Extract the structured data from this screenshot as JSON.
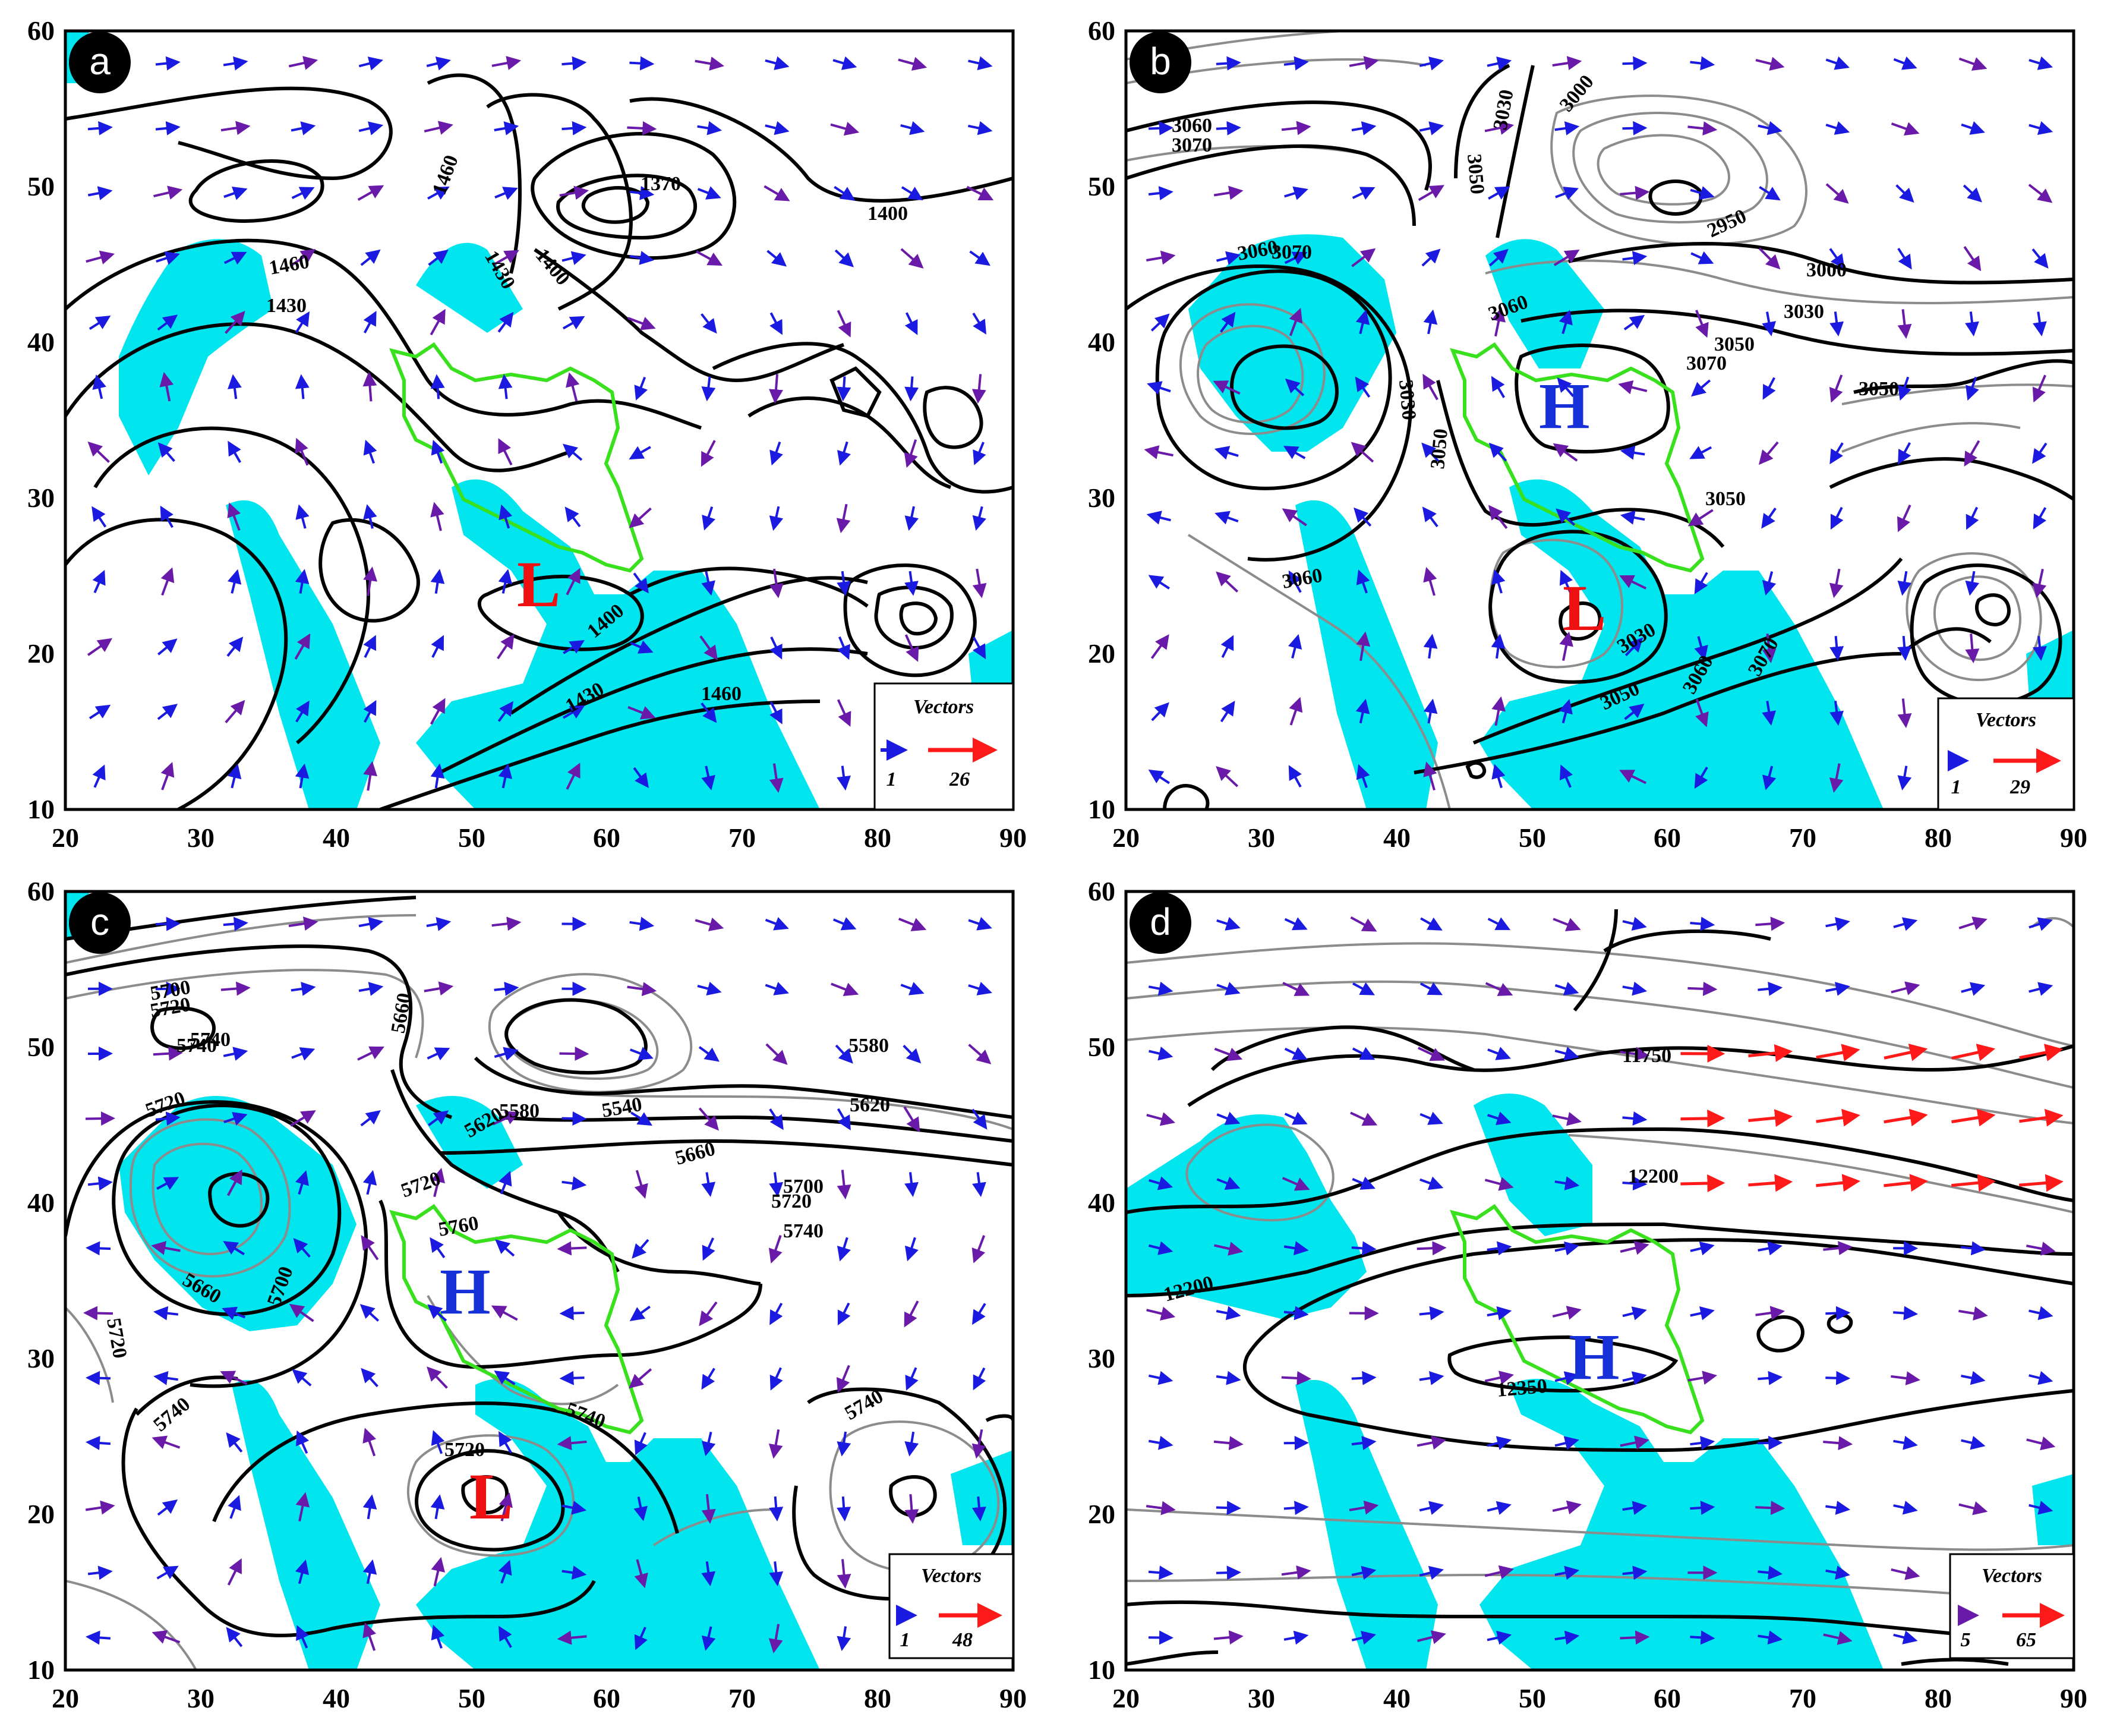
{
  "figure": {
    "panels": [
      {
        "label": "a",
        "x_ticks": [
          "20",
          "30",
          "40",
          "50",
          "60",
          "70",
          "80",
          "90"
        ],
        "y_ticks": [
          "10",
          "20",
          "30",
          "40",
          "50",
          "60"
        ],
        "contour_labels": [
          "1460",
          "1370",
          "1400",
          "1430",
          "1460",
          "1430",
          "1400",
          "1400",
          "1430",
          "1460"
        ],
        "centers": [
          {
            "letter": "L",
            "color": "#ee1111"
          }
        ],
        "legend": {
          "title": "Vectors",
          "min": "1",
          "max": "26"
        }
      },
      {
        "label": "b",
        "x_ticks": [
          "20",
          "30",
          "40",
          "50",
          "60",
          "70",
          "80",
          "90"
        ],
        "y_ticks": [
          "10",
          "20",
          "30",
          "40",
          "50",
          "60"
        ],
        "contour_labels": [
          "3060",
          "3070",
          "3050",
          "3030",
          "3000",
          "2950",
          "3000",
          "3030",
          "3050",
          "3070",
          "3060",
          "3060",
          "3070",
          "3030",
          "3050",
          "3050",
          "3050",
          "3060",
          "3030",
          "3050",
          "3060",
          "3070"
        ],
        "centers": [
          {
            "letter": "H",
            "color": "#1530d6"
          },
          {
            "letter": "L",
            "color": "#ee1111"
          }
        ],
        "legend": {
          "title": "Vectors",
          "min": "1",
          "max": "29"
        }
      },
      {
        "label": "c",
        "x_ticks": [
          "20",
          "30",
          "40",
          "50",
          "60",
          "70",
          "80",
          "90"
        ],
        "y_ticks": [
          "10",
          "20",
          "30",
          "40",
          "50",
          "60"
        ],
        "contour_labels": [
          "5700",
          "5720",
          "5740",
          "5660",
          "5580",
          "5540",
          "5620",
          "5620",
          "5580",
          "5660",
          "5700",
          "5720",
          "5740",
          "5720",
          "5740",
          "5760",
          "5720",
          "5660",
          "5700",
          "5720",
          "5740",
          "5740",
          "5720",
          "5740"
        ],
        "centers": [
          {
            "letter": "H",
            "color": "#1530d6"
          },
          {
            "letter": "L",
            "color": "#ee1111"
          }
        ],
        "legend": {
          "title": "Vectors",
          "min": "1",
          "max": "48"
        }
      },
      {
        "label": "d",
        "x_ticks": [
          "20",
          "30",
          "40",
          "50",
          "60",
          "70",
          "80",
          "90"
        ],
        "y_ticks": [
          "10",
          "20",
          "30",
          "40",
          "50",
          "60"
        ],
        "contour_labels": [
          "11750",
          "12200",
          "12200",
          "12350"
        ],
        "centers": [
          {
            "letter": "H",
            "color": "#1530d6"
          }
        ],
        "legend": {
          "title": "Vectors",
          "min": "5",
          "max": "65"
        }
      }
    ],
    "colors": {
      "moisture_fill": "#00e5ee",
      "contour_major": "#000000",
      "contour_minor": "#8c8c8c",
      "region_border": "#39e01d",
      "vector_weak": "#1a1ae0",
      "vector_medium": "#6a1aa8",
      "vector_strong": "#ff1a1a",
      "high_center": "#1530d6",
      "low_center": "#ee1111"
    },
    "icons": {
      "panel_badge": "black-circle-badge",
      "legend_arrow": "red-arrow-icon"
    }
  }
}
